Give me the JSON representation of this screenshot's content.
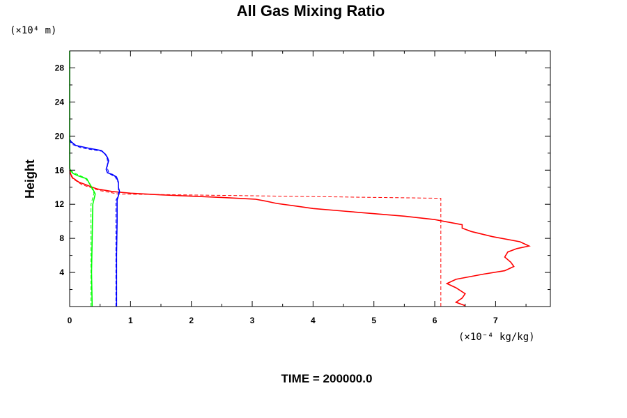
{
  "chart_data": {
    "type": "line",
    "title": "All Gas Mixing Ratio",
    "ylabel": "Height",
    "y_unit_label": "(×10⁴ m)",
    "x_unit_label": "(×10⁻⁴ kg/kg)",
    "footer": "TIME = 200000.0",
    "xlim": [
      0,
      7.9
    ],
    "ylim": [
      0,
      30
    ],
    "x_ticks": [
      "0",
      "1",
      "2",
      "3",
      "4",
      "5",
      "6",
      "7"
    ],
    "y_ticks": [
      "4",
      "8",
      "12",
      "16",
      "20",
      "24",
      "28"
    ],
    "series": [
      {
        "color": "#ff0000",
        "style": "solid",
        "points": [
          [
            6.5,
            0.1
          ],
          [
            6.35,
            0.5
          ],
          [
            6.45,
            1.0
          ],
          [
            6.5,
            1.5
          ],
          [
            6.35,
            2.2
          ],
          [
            6.2,
            2.7
          ],
          [
            6.35,
            3.2
          ],
          [
            6.8,
            3.8
          ],
          [
            7.15,
            4.2
          ],
          [
            7.3,
            4.7
          ],
          [
            7.25,
            5.2
          ],
          [
            7.15,
            5.8
          ],
          [
            7.2,
            6.4
          ],
          [
            7.35,
            6.8
          ],
          [
            7.55,
            7.1
          ],
          [
            7.4,
            7.6
          ],
          [
            6.95,
            8.2
          ],
          [
            6.6,
            8.8
          ],
          [
            6.45,
            9.2
          ],
          [
            6.45,
            9.6
          ],
          [
            6.15,
            10.0
          ],
          [
            6.0,
            10.2
          ],
          [
            5.5,
            10.6
          ],
          [
            5.0,
            10.9
          ],
          [
            4.5,
            11.2
          ],
          [
            4.0,
            11.5
          ],
          [
            3.7,
            11.8
          ],
          [
            3.4,
            12.1
          ],
          [
            3.2,
            12.4
          ],
          [
            3.05,
            12.6
          ],
          [
            2.5,
            12.8
          ],
          [
            2.0,
            12.95
          ],
          [
            1.5,
            13.1
          ],
          [
            1.0,
            13.3
          ],
          [
            0.7,
            13.5
          ],
          [
            0.45,
            13.8
          ],
          [
            0.3,
            14.2
          ],
          [
            0.15,
            14.6
          ],
          [
            0.05,
            15.1
          ],
          [
            0.02,
            15.5
          ],
          [
            0,
            16.0
          ]
        ]
      },
      {
        "color": "#ff0000",
        "style": "dashed",
        "points": [
          [
            6.1,
            0
          ],
          [
            6.1,
            12.7
          ],
          [
            0.8,
            13.2
          ],
          [
            0.5,
            13.6
          ],
          [
            0.2,
            14.3
          ],
          [
            0.05,
            15.0
          ],
          [
            0,
            15.6
          ]
        ]
      },
      {
        "color": "#0000ff",
        "style": "solid",
        "points": [
          [
            0.77,
            0
          ],
          [
            0.77,
            6
          ],
          [
            0.78,
            10
          ],
          [
            0.78,
            12.5
          ],
          [
            0.8,
            13
          ],
          [
            0.82,
            13.5
          ],
          [
            0.8,
            14
          ],
          [
            0.8,
            14.6
          ],
          [
            0.77,
            15.2
          ],
          [
            0.7,
            15.5
          ],
          [
            0.62,
            15.7
          ],
          [
            0.6,
            16.1
          ],
          [
            0.62,
            16.6
          ],
          [
            0.64,
            17.1
          ],
          [
            0.62,
            17.5
          ],
          [
            0.58,
            17.9
          ],
          [
            0.52,
            18.3
          ],
          [
            0.3,
            18.6
          ],
          [
            0.1,
            18.9
          ],
          [
            0.03,
            19.3
          ],
          [
            0,
            19.6
          ]
        ]
      },
      {
        "color": "#0000ff",
        "style": "dashed",
        "points": [
          [
            0.76,
            0
          ],
          [
            0.76,
            12.5
          ],
          [
            0.8,
            13
          ],
          [
            0.8,
            14.5
          ],
          [
            0.75,
            15.2
          ],
          [
            0.65,
            15.6
          ],
          [
            0.62,
            16.2
          ],
          [
            0.62,
            17.2
          ],
          [
            0.6,
            17.8
          ],
          [
            0.55,
            18.2
          ],
          [
            0.2,
            18.6
          ],
          [
            0.05,
            19.0
          ],
          [
            0,
            19.4
          ]
        ]
      },
      {
        "color": "#00ff00",
        "style": "solid",
        "points": [
          [
            0.37,
            0
          ],
          [
            0.36,
            4
          ],
          [
            0.37,
            8
          ],
          [
            0.38,
            12
          ],
          [
            0.42,
            13.2
          ],
          [
            0.38,
            13.8
          ],
          [
            0.32,
            14.5
          ],
          [
            0.28,
            15.0
          ],
          [
            0.15,
            15.3
          ],
          [
            0.06,
            15.6
          ],
          [
            0.02,
            15.9
          ],
          [
            0,
            16.2
          ],
          [
            0,
            30
          ]
        ]
      },
      {
        "color": "#00ff00",
        "style": "dashed",
        "points": [
          [
            0.35,
            0
          ],
          [
            0.35,
            12
          ],
          [
            0.4,
            13.3
          ],
          [
            0.33,
            14.4
          ],
          [
            0.25,
            15.1
          ],
          [
            0.1,
            15.6
          ],
          [
            0,
            16.0
          ]
        ]
      }
    ]
  }
}
